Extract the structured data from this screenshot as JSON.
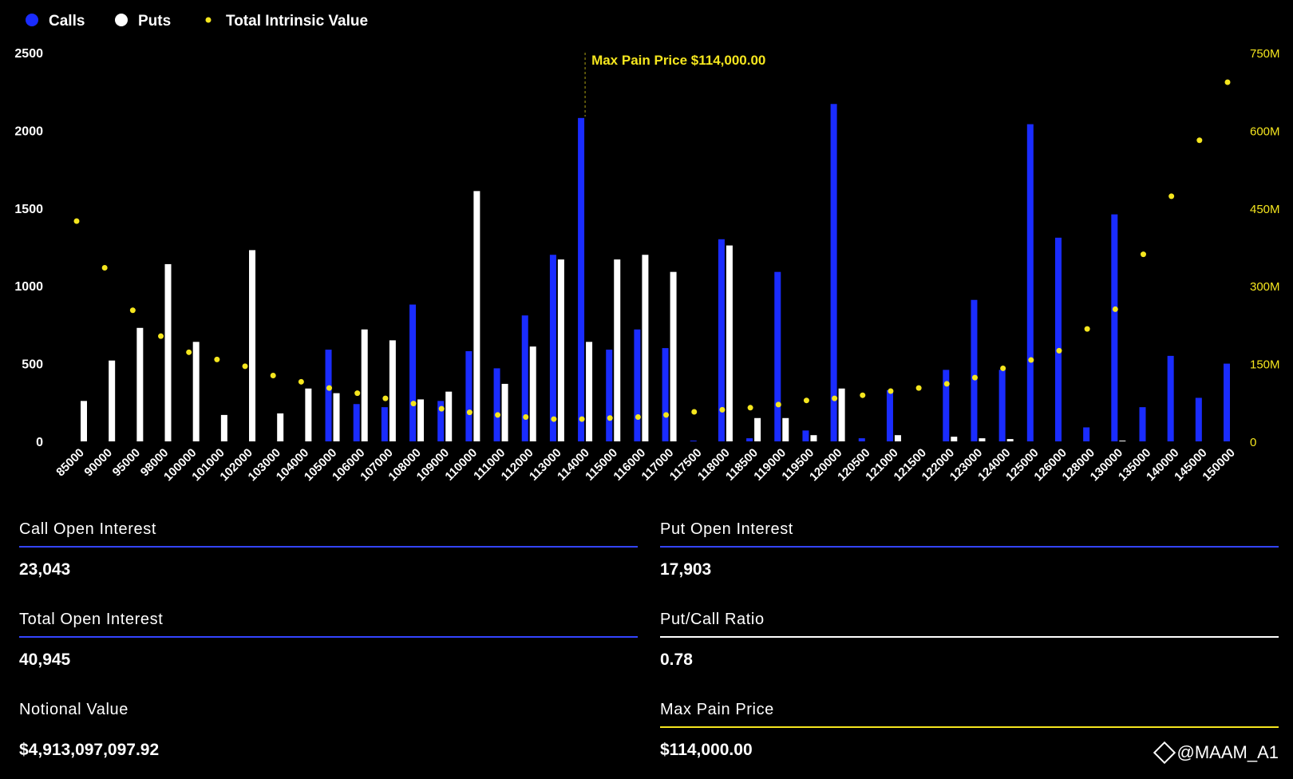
{
  "chart_data": {
    "type": "bar",
    "legend": [
      "Calls",
      "Puts",
      "Total Intrinsic Value"
    ],
    "legend_placement": "top-left",
    "categories": [
      "85000",
      "90000",
      "95000",
      "98000",
      "100000",
      "101000",
      "102000",
      "103000",
      "104000",
      "105000",
      "106000",
      "107000",
      "108000",
      "109000",
      "110000",
      "111000",
      "112000",
      "113000",
      "114000",
      "115000",
      "116000",
      "117000",
      "117500",
      "118000",
      "118500",
      "119000",
      "119500",
      "120000",
      "120500",
      "121000",
      "121500",
      "122000",
      "123000",
      "124000",
      "125000",
      "126000",
      "128000",
      "130000",
      "135000",
      "140000",
      "145000",
      "150000"
    ],
    "series": [
      {
        "name": "Calls",
        "axis": "left",
        "color": "#1a2cff",
        "values": [
          0,
          0,
          0,
          0,
          0,
          0,
          0,
          0,
          0,
          590,
          240,
          220,
          880,
          260,
          580,
          470,
          810,
          1200,
          2080,
          590,
          720,
          600,
          5,
          1300,
          20,
          1090,
          70,
          2170,
          20,
          330,
          0,
          460,
          910,
          460,
          2040,
          1310,
          90,
          1460,
          220,
          550,
          280,
          500
        ]
      },
      {
        "name": "Puts",
        "axis": "left",
        "color": "#ffffff",
        "values": [
          260,
          520,
          730,
          1140,
          640,
          170,
          1230,
          180,
          340,
          310,
          720,
          650,
          270,
          320,
          1610,
          370,
          610,
          1170,
          640,
          1170,
          1200,
          1090,
          0,
          1260,
          150,
          150,
          40,
          340,
          0,
          40,
          0,
          30,
          20,
          15,
          0,
          0,
          0,
          5,
          0,
          0,
          0,
          0
        ]
      },
      {
        "name": "Total Intrinsic Value",
        "axis": "right",
        "color": "#f5e61e",
        "type": "scatter",
        "values": [
          425000000,
          335000000,
          253000000,
          203000000,
          172000000,
          158000000,
          145000000,
          127000000,
          115000000,
          103000000,
          93000000,
          83000000,
          73000000,
          63000000,
          56000000,
          51000000,
          47000000,
          43000000,
          43000000,
          45000000,
          47000000,
          51000000,
          57000000,
          61000000,
          65000000,
          71000000,
          79000000,
          83000000,
          89000000,
          97000000,
          103000000,
          111000000,
          123000000,
          141000000,
          157000000,
          175000000,
          217000000,
          255000000,
          361000000,
          473000000,
          581000000,
          693000000
        ]
      }
    ],
    "left_axis": {
      "ylim": [
        0,
        2500
      ],
      "ticks": [
        "0",
        "500",
        "1000",
        "1500",
        "2000",
        "2500"
      ]
    },
    "right_axis": {
      "ylim": [
        0,
        750000000
      ],
      "ticks": [
        "0",
        "150M",
        "300M",
        "450M",
        "600M",
        "750M"
      ]
    },
    "annotation": {
      "text": "Max Pain Price $114,000.00",
      "category": "114000"
    },
    "grid": false
  },
  "stats": {
    "call_oi": {
      "label": "Call Open Interest",
      "value": "23,043"
    },
    "put_oi": {
      "label": "Put Open Interest",
      "value": "17,903"
    },
    "total_oi": {
      "label": "Total Open Interest",
      "value": "40,945"
    },
    "pc_ratio": {
      "label": "Put/Call Ratio",
      "value": "0.78"
    },
    "notional": {
      "label": "Notional Value",
      "value": "$4,913,097,097.92"
    },
    "max_pain": {
      "label": "Max Pain Price",
      "value": "$114,000.00"
    }
  },
  "colors": {
    "calls": "#1a2cff",
    "puts": "#ffffff",
    "intrinsic": "#f5e61e",
    "rule_blue": "#3344ff",
    "rule_white": "#ffffff",
    "rule_yellow": "#f5e61e"
  },
  "watermark": "@MAAM_A1"
}
